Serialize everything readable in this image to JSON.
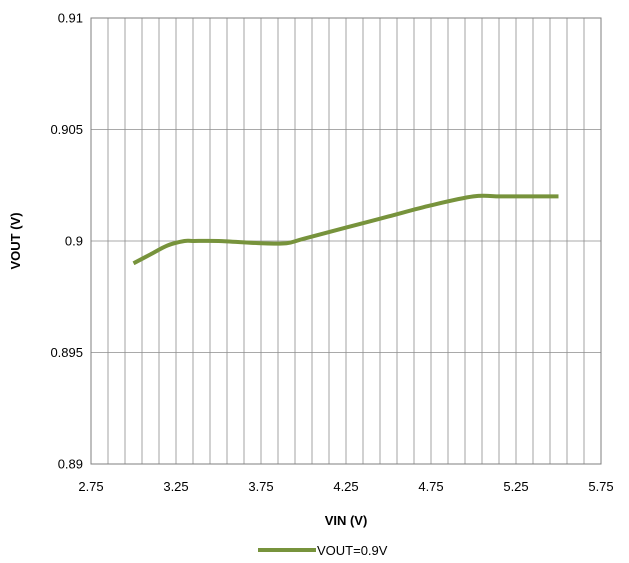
{
  "chart_data": {
    "type": "line",
    "title": "",
    "xlabel": "VIN (V)",
    "ylabel": "VOUT (V)",
    "xlim": [
      2.75,
      5.75
    ],
    "ylim": [
      0.89,
      0.91
    ],
    "x_ticks": [
      "2.75",
      "3.25",
      "3.75",
      "4.25",
      "4.75",
      "5.25",
      "5.75"
    ],
    "y_ticks": [
      "0.91",
      "0.905",
      "0.9",
      "0.895",
      "0.89"
    ],
    "x_minor_step": 0.1,
    "grid": true,
    "legend_position": "bottom",
    "series": [
      {
        "name": "VOUT=0.9V",
        "color": "#77933C",
        "x": [
          3.0,
          3.1,
          3.2,
          3.3,
          3.35,
          3.5,
          3.75,
          3.9,
          4.0,
          4.25,
          4.5,
          4.75,
          5.0,
          5.15,
          5.25,
          5.5
        ],
        "y": [
          0.899,
          0.8994,
          0.8998,
          0.9,
          0.9,
          0.9,
          0.8999,
          0.8999,
          0.9001,
          0.9006,
          0.9011,
          0.9016,
          0.902,
          0.902,
          0.902,
          0.902
        ]
      }
    ]
  }
}
